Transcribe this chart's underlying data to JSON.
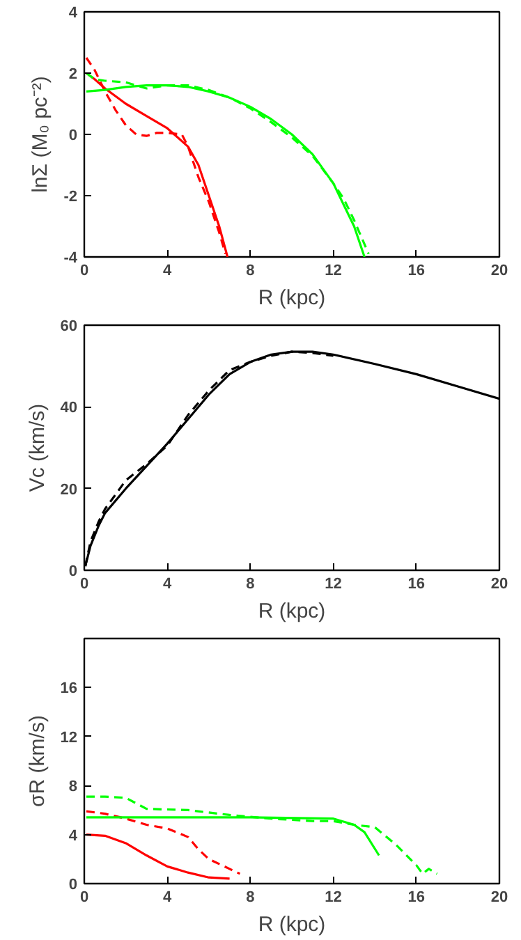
{
  "chart_data": [
    {
      "type": "line",
      "xlabel": "R (kpc)",
      "ylabel": "lnΣ (M₀ pc⁻²)",
      "xlim": [
        0,
        20
      ],
      "ylim": [
        -4,
        4
      ],
      "xticks": [
        0,
        4,
        8,
        12,
        16,
        20
      ],
      "yticks": [
        -4,
        -2,
        0,
        2,
        4
      ],
      "grid": false,
      "series": [
        {
          "color": "#ff0000",
          "line_style": "solid",
          "x": [
            0.1,
            0.5,
            1,
            2,
            3,
            4,
            5,
            5.5,
            6,
            6.5,
            6.9
          ],
          "values": [
            2.0,
            1.8,
            1.5,
            1.0,
            0.6,
            0.2,
            -0.4,
            -1.0,
            -2.0,
            -3.0,
            -4.0
          ]
        },
        {
          "color": "#ff0000",
          "line_style": "dashed",
          "x": [
            0.1,
            0.5,
            1,
            1.5,
            2,
            2.5,
            3,
            3.5,
            4,
            4.7,
            5,
            5.5,
            6,
            6.5,
            6.8
          ],
          "values": [
            2.5,
            2.1,
            1.4,
            0.8,
            0.3,
            0.0,
            -0.05,
            0.05,
            0.05,
            0.0,
            -0.4,
            -1.4,
            -2.2,
            -3.2,
            -3.9
          ]
        },
        {
          "color": "#00ff00",
          "line_style": "solid",
          "x": [
            0.1,
            1,
            2,
            3,
            4,
            5,
            6,
            7,
            8,
            9,
            10,
            11,
            12,
            12.5,
            13,
            13.5
          ],
          "values": [
            1.4,
            1.45,
            1.55,
            1.6,
            1.6,
            1.55,
            1.4,
            1.2,
            0.9,
            0.5,
            0.0,
            -0.65,
            -1.6,
            -2.3,
            -3.0,
            -4.0
          ]
        },
        {
          "color": "#00ff00",
          "line_style": "dashed",
          "x": [
            0.1,
            0.5,
            1,
            2,
            3,
            4,
            5,
            6,
            7,
            8,
            9,
            10,
            11,
            12,
            12.5,
            13,
            13.7
          ],
          "values": [
            2.0,
            1.8,
            1.75,
            1.7,
            1.5,
            1.6,
            1.6,
            1.45,
            1.2,
            0.85,
            0.4,
            -0.1,
            -0.7,
            -1.6,
            -2.1,
            -2.8,
            -3.9
          ]
        }
      ]
    },
    {
      "type": "line",
      "xlabel": "R (kpc)",
      "ylabel": "Vc (km/s)",
      "xlim": [
        0,
        20
      ],
      "ylim": [
        0,
        60
      ],
      "xticks": [
        0,
        4,
        8,
        12,
        16,
        20
      ],
      "yticks": [
        0,
        20,
        40,
        60
      ],
      "grid": false,
      "series": [
        {
          "color": "#000000",
          "line_style": "solid",
          "x": [
            0.05,
            0.3,
            0.7,
            1,
            2,
            3,
            4,
            5,
            6,
            7,
            8,
            9,
            10,
            11,
            12,
            14,
            16,
            18,
            20
          ],
          "values": [
            1,
            6,
            11,
            14,
            20,
            25.5,
            31,
            37,
            43,
            48,
            51,
            52.8,
            53.5,
            53.5,
            52.8,
            50.5,
            48,
            45,
            42
          ]
        },
        {
          "color": "#000000",
          "line_style": "dashed",
          "x": [
            0.05,
            0.3,
            0.7,
            1,
            2,
            3,
            4,
            5,
            6,
            7,
            8,
            9,
            10,
            11,
            12
          ],
          "values": [
            1,
            7,
            12,
            15,
            22,
            26,
            30.5,
            38,
            44,
            49,
            51,
            52.5,
            53.5,
            53.2,
            52.5
          ]
        }
      ]
    },
    {
      "type": "line",
      "xlabel": "R (kpc)",
      "ylabel": "σR (km/s)",
      "xlim": [
        0,
        20
      ],
      "ylim": [
        0,
        20
      ],
      "xticks": [
        0,
        4,
        8,
        12,
        16,
        20
      ],
      "yticks": [
        0,
        4,
        8,
        12,
        16
      ],
      "grid": false,
      "series": [
        {
          "color": "#ff0000",
          "line_style": "solid",
          "x": [
            0.1,
            1,
            2,
            3,
            4,
            5,
            6,
            7
          ],
          "values": [
            4.0,
            3.9,
            3.3,
            2.3,
            1.4,
            0.9,
            0.5,
            0.4
          ]
        },
        {
          "color": "#ff0000",
          "line_style": "dashed",
          "x": [
            0.1,
            1,
            2,
            3,
            4,
            5,
            5.5,
            6,
            7,
            7.5
          ],
          "values": [
            5.9,
            5.7,
            5.3,
            4.8,
            4.5,
            3.8,
            2.8,
            2.0,
            1.2,
            0.8
          ]
        },
        {
          "color": "#00ff00",
          "line_style": "solid",
          "x": [
            0.1,
            4,
            8,
            12,
            13,
            13.5,
            14.2
          ],
          "values": [
            5.4,
            5.4,
            5.4,
            5.3,
            4.8,
            4.2,
            2.3
          ]
        },
        {
          "color": "#00ff00",
          "line_style": "dashed",
          "x": [
            0.1,
            1,
            2,
            3,
            5,
            7,
            9,
            11,
            12,
            13,
            14,
            15,
            16,
            16.3,
            16.6,
            17
          ],
          "values": [
            7.1,
            7.1,
            7.0,
            6.1,
            6.0,
            5.6,
            5.3,
            5.1,
            5.1,
            4.8,
            4.6,
            3.2,
            1.5,
            0.8,
            1.2,
            0.8
          ]
        }
      ]
    }
  ]
}
